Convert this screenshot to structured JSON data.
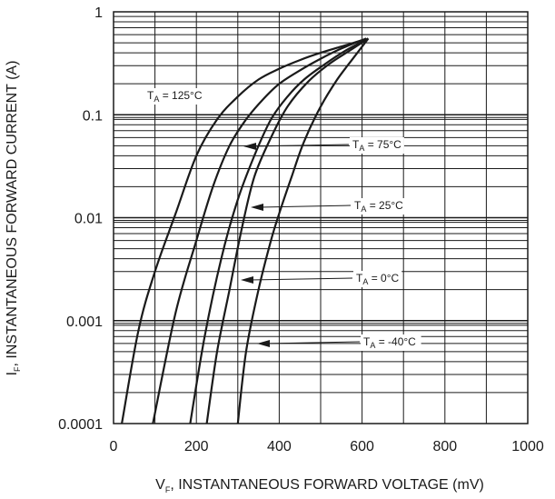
{
  "chart_data": {
    "type": "line",
    "xlabel": {
      "main": "V",
      "sub": "F",
      "rest": ", INSTANTANEOUS FORWARD VOLTAGE (mV)"
    },
    "ylabel": {
      "main": "I",
      "sub": "F",
      "rest": ", INSTANTANEOUS FORWARD CURRENT (A)"
    },
    "xlim": [
      0,
      1000
    ],
    "ylim": [
      0.0001,
      1
    ],
    "y_scale": "log",
    "grid": true,
    "x_ticks": [
      "0",
      "200",
      "400",
      "600",
      "800",
      "1000"
    ],
    "y_ticks": [
      "0.0001",
      "0.001",
      "0.01",
      "0.1",
      "1"
    ],
    "series": [
      {
        "name": "T_A = 125°C",
        "label": {
          "main": "T",
          "sub": "A",
          "rest": " = 125°C"
        },
        "points": [
          [
            20,
            0.0001
          ],
          [
            60,
            0.0008
          ],
          [
            100,
            0.003
          ],
          [
            150,
            0.011
          ],
          [
            200,
            0.04
          ],
          [
            250,
            0.09
          ],
          [
            300,
            0.15
          ],
          [
            350,
            0.22
          ],
          [
            400,
            0.28
          ],
          [
            450,
            0.34
          ],
          [
            500,
            0.4
          ],
          [
            550,
            0.46
          ],
          [
            600,
            0.53
          ]
        ]
      },
      {
        "name": "T_A = 75°C",
        "label": {
          "main": "T",
          "sub": "A",
          "rest": " = 75°C"
        },
        "points": [
          [
            95,
            0.0001
          ],
          [
            150,
            0.0012
          ],
          [
            200,
            0.006
          ],
          [
            240,
            0.02
          ],
          [
            280,
            0.05
          ],
          [
            320,
            0.09
          ],
          [
            360,
            0.14
          ],
          [
            400,
            0.2
          ],
          [
            450,
            0.27
          ],
          [
            500,
            0.35
          ],
          [
            550,
            0.44
          ],
          [
            610,
            0.55
          ]
        ]
      },
      {
        "name": "T_A = 25°C",
        "label": {
          "main": "T",
          "sub": "A",
          "rest": " = 25°C"
        },
        "points": [
          [
            185,
            0.0001
          ],
          [
            220,
            0.0007
          ],
          [
            260,
            0.004
          ],
          [
            300,
            0.015
          ],
          [
            340,
            0.04
          ],
          [
            380,
            0.09
          ],
          [
            420,
            0.15
          ],
          [
            460,
            0.22
          ],
          [
            510,
            0.31
          ],
          [
            560,
            0.42
          ],
          [
            615,
            0.55
          ]
        ]
      },
      {
        "name": "T_A = 0°C",
        "label": {
          "main": "T",
          "sub": "A",
          "rest": " = 0°C"
        },
        "points": [
          [
            225,
            0.0001
          ],
          [
            250,
            0.0005
          ],
          [
            280,
            0.002
          ],
          [
            310,
            0.008
          ],
          [
            340,
            0.025
          ],
          [
            380,
            0.06
          ],
          [
            420,
            0.12
          ],
          [
            470,
            0.21
          ],
          [
            520,
            0.31
          ],
          [
            570,
            0.42
          ],
          [
            615,
            0.55
          ]
        ]
      },
      {
        "name": "T_A = -40°C",
        "label": {
          "main": "T",
          "sub": "A",
          "rest": " = -40°C"
        },
        "points": [
          [
            300,
            0.0001
          ],
          [
            320,
            0.0005
          ],
          [
            350,
            0.002
          ],
          [
            380,
            0.006
          ],
          [
            400,
            0.011
          ],
          [
            430,
            0.025
          ],
          [
            460,
            0.055
          ],
          [
            500,
            0.12
          ],
          [
            540,
            0.22
          ],
          [
            580,
            0.36
          ],
          [
            615,
            0.55
          ]
        ]
      }
    ]
  }
}
